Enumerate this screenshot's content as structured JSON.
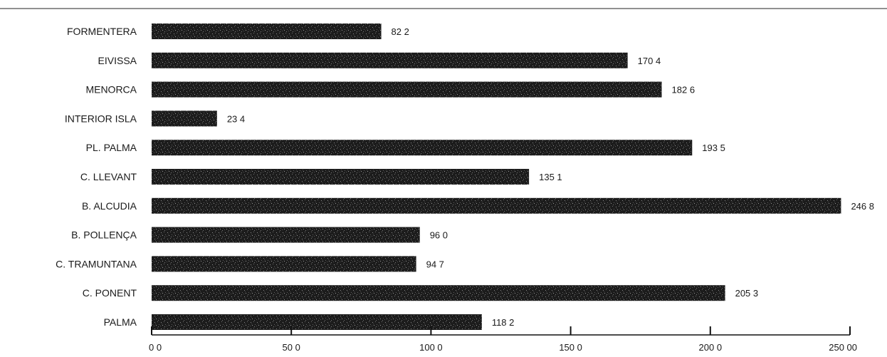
{
  "chart_data": {
    "type": "bar",
    "orientation": "horizontal",
    "categories": [
      "FORMENTERA",
      "EIVISSA",
      "MENORCA",
      "INTERIOR ISLA",
      "PL. PALMA",
      "C. LLEVANT",
      "B. ALCUDIA",
      "B. POLLENÇA",
      "C. TRAMUNTANA",
      "C. PONENT",
      "PALMA"
    ],
    "values": [
      82.2,
      170.4,
      182.6,
      23.4,
      193.5,
      135.1,
      246.8,
      96.0,
      94.7,
      205.3,
      118.2
    ],
    "value_labels": [
      "82 2",
      "170 4",
      "182 6",
      "23 4",
      "193 5",
      "135 1",
      "246 8",
      "96 0",
      "94 7",
      "205 3",
      "118 2"
    ],
    "xticks": [
      0,
      50,
      100,
      150,
      200,
      250
    ],
    "xtick_labels": [
      "0 0",
      "50 0",
      "100 0",
      "150 0",
      "200 0",
      "250 00"
    ],
    "xlim": [
      0,
      250
    ],
    "title": "",
    "xlabel": "",
    "ylabel": "",
    "grid": false,
    "bar_color": "#1c1c1c"
  }
}
